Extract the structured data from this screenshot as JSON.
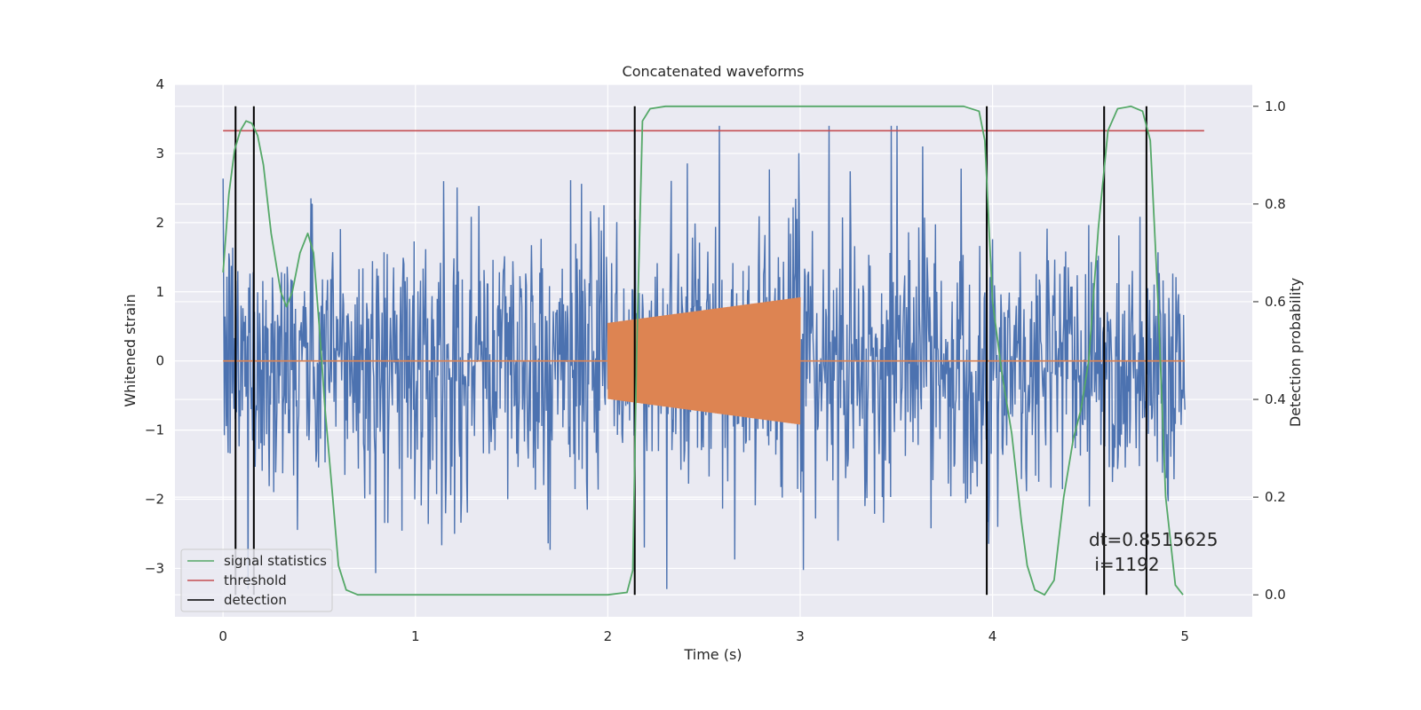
{
  "chart_data": {
    "type": "line",
    "title": "Concatenated waveforms",
    "xlabel": "Time (s)",
    "ylabel": "Whitened strain",
    "y2label": "Detection probability",
    "xlim": [
      -0.25,
      5.35
    ],
    "ylim": [
      -3.7,
      4.0
    ],
    "y2lim": [
      -0.045,
      1.045
    ],
    "xticks": [
      0,
      1,
      2,
      3,
      4,
      5
    ],
    "yticks": [
      -3,
      -2,
      -1,
      0,
      1,
      2,
      3,
      4
    ],
    "y2ticks": [
      0.0,
      0.2,
      0.4,
      0.6,
      0.8,
      1.0
    ],
    "ytick_labels": [
      "−3",
      "−2",
      "−1",
      "0",
      "1",
      "2",
      "3",
      "4"
    ],
    "y2tick_labels": [
      "0.0",
      "0.2",
      "0.4",
      "0.6",
      "0.8",
      "1.0"
    ],
    "xtick_labels": [
      "0",
      "1",
      "2",
      "3",
      "4",
      "5"
    ],
    "grid": true,
    "legend_position": "lower-left",
    "colors": {
      "strain": "#4c72b0",
      "injection": "#dd8452",
      "statistics": "#55a868",
      "threshold": "#c44e52",
      "detection": "#000000",
      "background": "#eaeaf2",
      "grid": "#ffffff"
    },
    "strain_noise": {
      "x_range": [
        0,
        5
      ],
      "typical_band": [
        -1.5,
        1.5
      ],
      "peak_range": [
        -3.3,
        3.4
      ]
    },
    "injection": {
      "x_range": [
        2,
        3
      ],
      "amplitude_start": 0.55,
      "amplitude_end": 0.92,
      "baseline": 0
    },
    "series": [
      {
        "name": "signal statistics",
        "axis": "right",
        "x": [
          0.0,
          0.03,
          0.06,
          0.09,
          0.12,
          0.15,
          0.18,
          0.21,
          0.25,
          0.3,
          0.33,
          0.36,
          0.4,
          0.44,
          0.47,
          0.5,
          0.53,
          0.57,
          0.6,
          0.64,
          0.7,
          0.9,
          1.5,
          2.0,
          2.1,
          2.13,
          2.15,
          2.18,
          2.22,
          2.3,
          3.0,
          3.85,
          3.93,
          3.96,
          4.0,
          4.05,
          4.1,
          4.15,
          4.18,
          4.22,
          4.27,
          4.32,
          4.37,
          4.42,
          4.46,
          4.5,
          4.55,
          4.6,
          4.65,
          4.72,
          4.78,
          4.82,
          4.86,
          4.9,
          4.95,
          4.99
        ],
        "y": [
          0.66,
          0.82,
          0.91,
          0.95,
          0.97,
          0.965,
          0.94,
          0.88,
          0.74,
          0.62,
          0.59,
          0.62,
          0.7,
          0.74,
          0.7,
          0.55,
          0.38,
          0.2,
          0.06,
          0.01,
          0.0,
          0.0,
          0.0,
          0.0,
          0.005,
          0.05,
          0.5,
          0.97,
          0.995,
          1.0,
          1.0,
          1.0,
          0.99,
          0.93,
          0.6,
          0.45,
          0.33,
          0.15,
          0.06,
          0.01,
          0.0,
          0.03,
          0.2,
          0.32,
          0.38,
          0.48,
          0.75,
          0.95,
          0.995,
          1.0,
          0.99,
          0.93,
          0.6,
          0.2,
          0.02,
          0.0
        ]
      },
      {
        "name": "threshold",
        "axis": "right",
        "x": [
          0.0,
          5.1
        ],
        "y": [
          0.95,
          0.95
        ]
      },
      {
        "name": "detection",
        "axis": "right",
        "x": [
          0.065,
          0.16,
          2.14,
          3.97,
          4.58,
          4.8
        ],
        "y_range": [
          0.0,
          1.0
        ]
      }
    ],
    "annotation": [
      "dt=0.8515625",
      " i=1192"
    ]
  }
}
